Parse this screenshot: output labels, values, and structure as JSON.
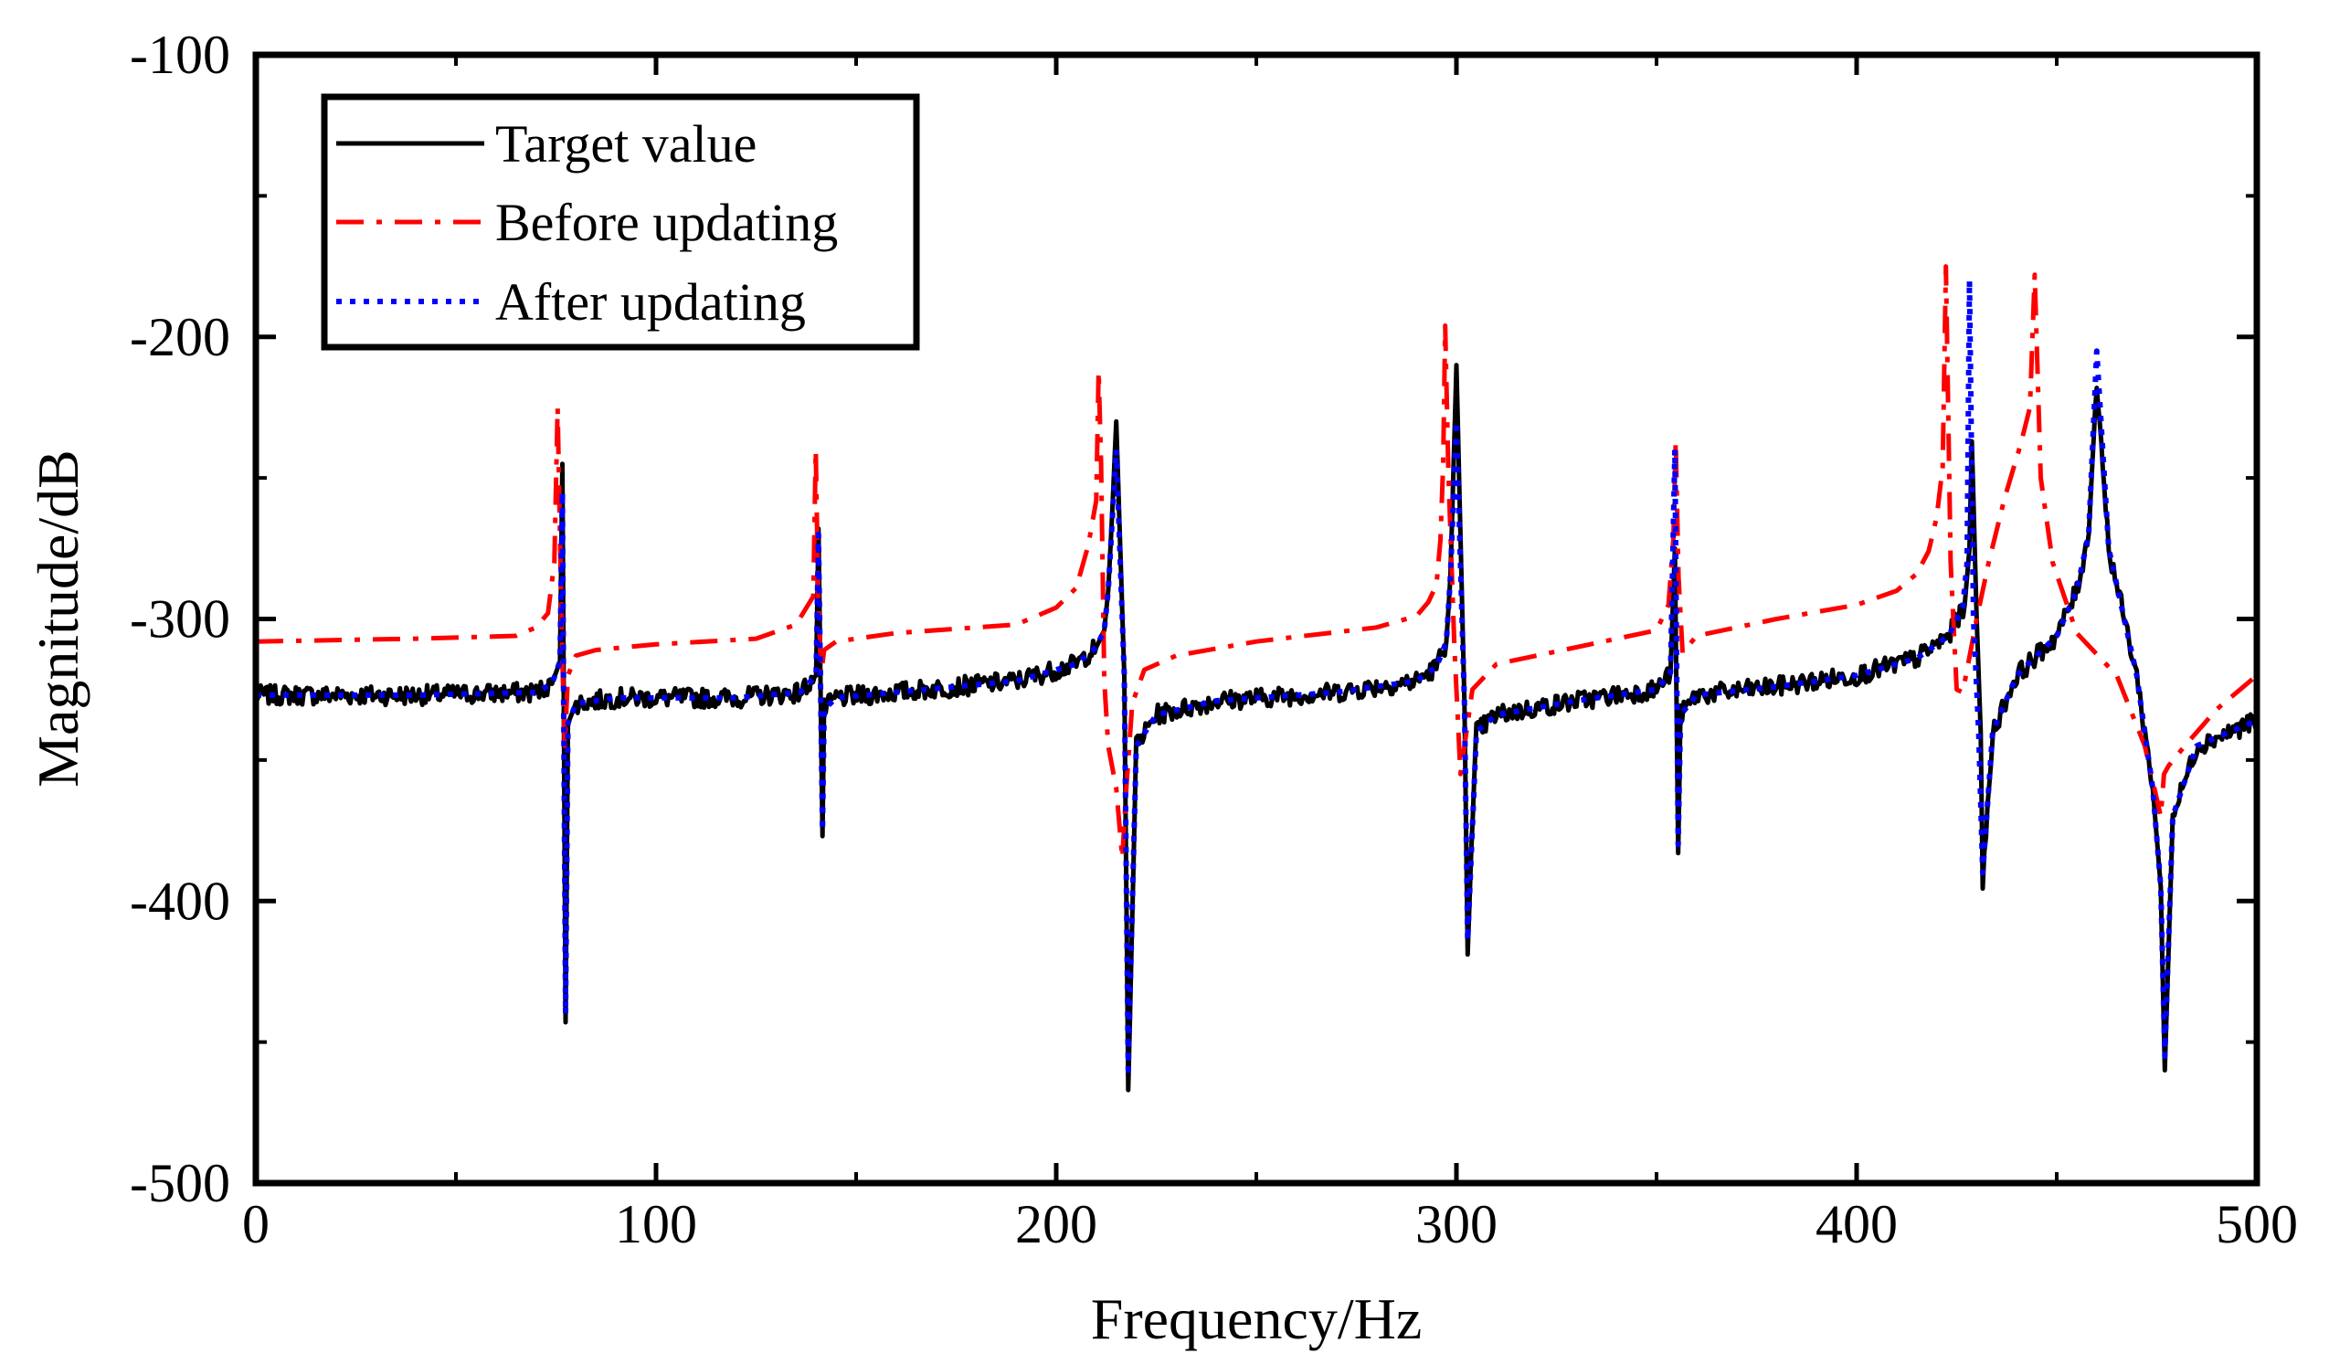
{
  "chart_data": {
    "type": "line",
    "title": "",
    "xlabel": "Frequency/Hz",
    "ylabel": "Magnitude/dB",
    "xlim": [
      0,
      500
    ],
    "ylim": [
      -500,
      -100
    ],
    "xticks": [
      0,
      100,
      200,
      300,
      400,
      500
    ],
    "yticks": [
      -500,
      -400,
      -300,
      -200,
      -100
    ],
    "xtick_labels": [
      "0",
      "100",
      "200",
      "300",
      "400",
      "500"
    ],
    "ytick_labels": [
      "-500",
      "-400",
      "-300",
      "-200",
      "-100"
    ],
    "grid": false,
    "legend_position": "top-left",
    "series": [
      {
        "name": "Target value",
        "color": "#000000",
        "style": "solid",
        "noisy": true,
        "x": [
          0,
          40,
          70,
          74,
          76,
          76.6,
          77.4,
          78,
          80,
          90,
          120,
          136,
          140,
          140.6,
          141.6,
          142,
          145,
          160,
          190,
          205,
          210,
          212,
          213,
          214,
          215,
          217,
          218,
          220,
          225,
          240,
          270,
          290,
          295,
          297.5,
          298.5,
          300,
          302,
          302.8,
          305,
          310,
          330,
          350,
          353.5,
          354.6,
          355.4,
          356,
          360,
          380,
          400,
          415,
          423,
          427,
          428.2,
          428.8,
          430,
          431,
          431.5,
          434,
          440,
          450,
          455,
          458,
          460,
          463,
          470,
          474,
          476,
          477,
          479,
          485,
          500
        ],
        "y": [
          -327,
          -327,
          -326,
          -323,
          -315,
          -245,
          -443,
          -337,
          -330,
          -328,
          -328,
          -326,
          -320,
          -268,
          -377,
          -332,
          -328,
          -326,
          -322,
          -316,
          -310,
          -304,
          -290,
          -262,
          -230,
          -320,
          -467,
          -345,
          -334,
          -329,
          -326,
          -322,
          -317,
          -308,
          -285,
          -210,
          -330,
          -416,
          -340,
          -334,
          -329,
          -325,
          -319,
          -275,
          -383,
          -334,
          -327,
          -324,
          -320,
          -314,
          -306,
          -295,
          -275,
          -237,
          -300,
          -340,
          -395,
          -340,
          -320,
          -306,
          -290,
          -270,
          -215,
          -275,
          -320,
          -360,
          -395,
          -460,
          -370,
          -345,
          -336
        ]
      },
      {
        "name": "Before updating",
        "color": "#ff0000",
        "style": "dashdot",
        "noisy": false,
        "x": [
          0,
          40,
          65,
          70,
          73,
          74.6,
          75.4,
          76.5,
          77.2,
          78,
          80,
          85,
          100,
          125,
          135,
          139.3,
          139.9,
          140.5,
          141.2,
          142,
          145,
          160,
          190,
          200,
          205,
          208,
          210,
          210.6,
          211.2,
          212,
          213,
          215,
          216.5,
          217.5,
          219,
          222,
          230,
          250,
          280,
          290,
          293,
          295,
          296,
          296.7,
          297.2,
          298,
          299.5,
          301,
          302.5,
          304,
          310,
          330,
          350,
          353,
          354.2,
          354.8,
          355.5,
          356.5,
          360,
          380,
          400,
          410,
          415,
          418,
          420,
          421.5,
          422.3,
          423.5,
          425,
          426.5,
          428,
          430,
          433,
          437,
          441,
          443.3,
          444.5,
          446,
          449,
          455,
          465,
          472,
          476,
          476.8,
          478,
          482,
          490,
          500
        ],
        "y": [
          -308,
          -307,
          -306,
          -303,
          -298,
          -280,
          -225,
          -310,
          -345,
          -320,
          -313,
          -311,
          -309,
          -307,
          -302,
          -292,
          -240,
          -290,
          -320,
          -311,
          -308,
          -305,
          -302,
          -296,
          -289,
          -274,
          -258,
          -212,
          -245,
          -322,
          -345,
          -360,
          -385,
          -360,
          -330,
          -318,
          -313,
          -308,
          -303,
          -299,
          -294,
          -288,
          -272,
          -245,
          -196,
          -248,
          -310,
          -355,
          -340,
          -325,
          -316,
          -310,
          -304,
          -295,
          -272,
          -237,
          -285,
          -312,
          -306,
          -300,
          -295,
          -290,
          -284,
          -276,
          -264,
          -246,
          -175,
          -280,
          -325,
          -326,
          -315,
          -300,
          -280,
          -257,
          -238,
          -225,
          -178,
          -250,
          -280,
          -305,
          -320,
          -345,
          -370,
          -355,
          -352,
          -345,
          -332,
          -320
        ]
      },
      {
        "name": "After updating",
        "color": "#0000ff",
        "style": "dotted",
        "noisy": false,
        "x": [
          0,
          40,
          70,
          74,
          76,
          76.6,
          77.4,
          78,
          80,
          90,
          120,
          136,
          140,
          140.6,
          141.6,
          142,
          145,
          160,
          190,
          205,
          210,
          212,
          213,
          214,
          215,
          217,
          218,
          220,
          225,
          240,
          270,
          290,
          295,
          297.5,
          298.5,
          300,
          302,
          302.8,
          305,
          310,
          330,
          350,
          353.5,
          354.6,
          355.4,
          356,
          360,
          380,
          400,
          415,
          423,
          426.5,
          427.6,
          428.2,
          429.2,
          430.5,
          431.5,
          434,
          440,
          450,
          455,
          458,
          460,
          463,
          470,
          474,
          476,
          477,
          479,
          485,
          500
        ],
        "y": [
          -327,
          -327,
          -326,
          -323,
          -315,
          -255,
          -440,
          -337,
          -330,
          -328,
          -328,
          -326,
          -320,
          -270,
          -375,
          -332,
          -328,
          -326,
          -322,
          -316,
          -310,
          -304,
          -290,
          -265,
          -240,
          -320,
          -460,
          -345,
          -334,
          -329,
          -326,
          -322,
          -317,
          -308,
          -285,
          -230,
          -330,
          -414,
          -340,
          -334,
          -329,
          -325,
          -319,
          -240,
          -380,
          -334,
          -327,
          -324,
          -320,
          -314,
          -306,
          -296,
          -280,
          -180,
          -300,
          -340,
          -390,
          -340,
          -320,
          -306,
          -290,
          -270,
          -205,
          -275,
          -320,
          -360,
          -395,
          -455,
          -370,
          -345,
          -336
        ]
      }
    ]
  }
}
